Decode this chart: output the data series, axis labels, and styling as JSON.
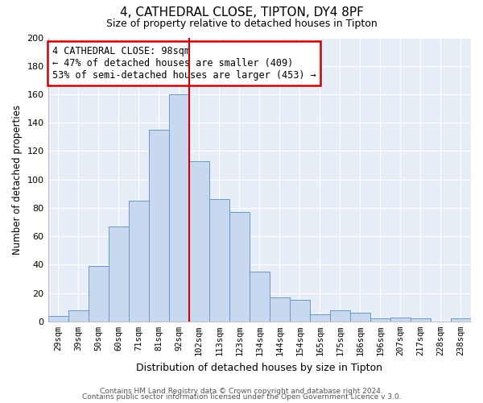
{
  "title": "4, CATHEDRAL CLOSE, TIPTON, DY4 8PF",
  "subtitle": "Size of property relative to detached houses in Tipton",
  "xlabel": "Distribution of detached houses by size in Tipton",
  "ylabel": "Number of detached properties",
  "bin_labels": [
    "29sqm",
    "39sqm",
    "50sqm",
    "60sqm",
    "71sqm",
    "81sqm",
    "92sqm",
    "102sqm",
    "113sqm",
    "123sqm",
    "134sqm",
    "144sqm",
    "154sqm",
    "165sqm",
    "175sqm",
    "186sqm",
    "196sqm",
    "207sqm",
    "217sqm",
    "228sqm",
    "238sqm"
  ],
  "bar_values": [
    4,
    8,
    39,
    67,
    85,
    135,
    160,
    113,
    86,
    77,
    35,
    17,
    15,
    5,
    8,
    6,
    2,
    3,
    2,
    0,
    2
  ],
  "bar_color": "#c8d8ee",
  "bar_edge_color": "#6699cc",
  "vline_color": "#cc0000",
  "ylim": [
    0,
    200
  ],
  "yticks": [
    0,
    20,
    40,
    60,
    80,
    100,
    120,
    140,
    160,
    180,
    200
  ],
  "annotation_title": "4 CATHEDRAL CLOSE: 98sqm",
  "annotation_line1": "← 47% of detached houses are smaller (409)",
  "annotation_line2": "53% of semi-detached houses are larger (453) →",
  "annotation_box_color": "#ffffff",
  "annotation_box_edge": "#cc0000",
  "footer1": "Contains HM Land Registry data © Crown copyright and database right 2024.",
  "footer2": "Contains public sector information licensed under the Open Government Licence v 3.0.",
  "plot_bg_color": "#e8eef8",
  "fig_bg_color": "#ffffff",
  "grid_color": "#ffffff"
}
